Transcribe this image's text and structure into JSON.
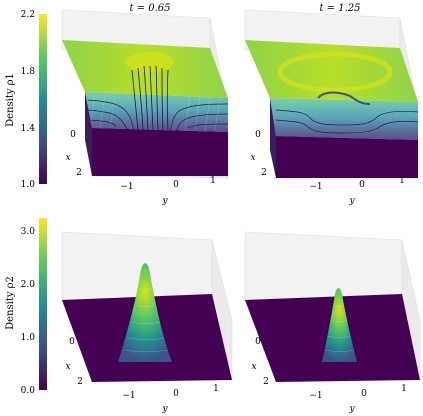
{
  "chart_data": {
    "type": "surface3d",
    "colormap": "viridis",
    "x_axis_label": "x",
    "y_axis_label": "y",
    "x_ticks": [
      "0",
      "2"
    ],
    "y_ticks": [
      "−1",
      "0",
      "1"
    ],
    "columns": [
      {
        "title": "t = 0.65"
      },
      {
        "title": "t = 1.25"
      }
    ],
    "rows": [
      {
        "label": "Density ρ1",
        "colorbar_range": [
          1.0,
          2.2
        ],
        "colorbar_ticks": [
          "1.0",
          "1.4",
          "1.8",
          "2.2"
        ]
      },
      {
        "label": "Density ρ2",
        "colorbar_range": [
          0.0,
          3.2
        ],
        "colorbar_ticks": [
          "0.0",
          "1.0",
          "2.0",
          "3.0"
        ]
      }
    ]
  }
}
